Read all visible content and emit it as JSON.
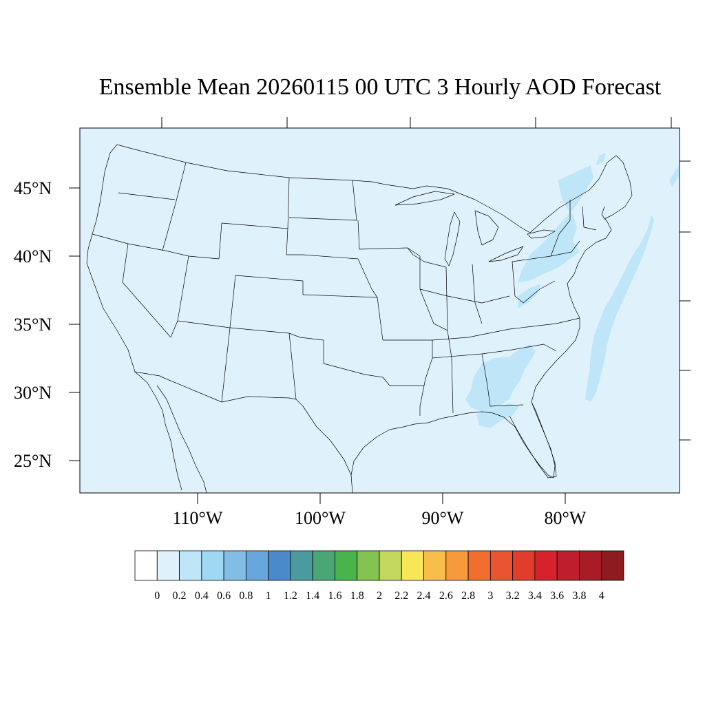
{
  "title": "Ensemble Mean 20260115 00 UTC 3 Hourly AOD Forecast",
  "map": {
    "background_color": "#dff2fb",
    "plume_color": "#bfe6f8",
    "line_color": "#000000",
    "lat_labels": [
      "45°N",
      "40°N",
      "35°N",
      "30°N",
      "25°N"
    ],
    "lon_labels": [
      "110°W",
      "100°W",
      "90°W",
      "80°W"
    ]
  },
  "colorbar": {
    "colors": [
      "#ffffff",
      "#dff2fb",
      "#bde6f7",
      "#9fd8f3",
      "#82bde6",
      "#68a7dc",
      "#4a8ac9",
      "#4b9a9d",
      "#4aa775",
      "#4ab34b",
      "#84c34f",
      "#c2d75b",
      "#f8e659",
      "#f7be4a",
      "#f69a3c",
      "#f16d2e",
      "#e85530",
      "#e03d2c",
      "#d5222d",
      "#bf1f2d",
      "#a81c26",
      "#8e1b1f"
    ],
    "labels": [
      "0",
      "0.2",
      "0.4",
      "0.6",
      "0.8",
      "1",
      "1.2",
      "1.4",
      "1.6",
      "1.8",
      "2",
      "2.2",
      "2.4",
      "2.6",
      "2.8",
      "3",
      "3.2",
      "3.4",
      "3.6",
      "3.8",
      "4"
    ]
  }
}
